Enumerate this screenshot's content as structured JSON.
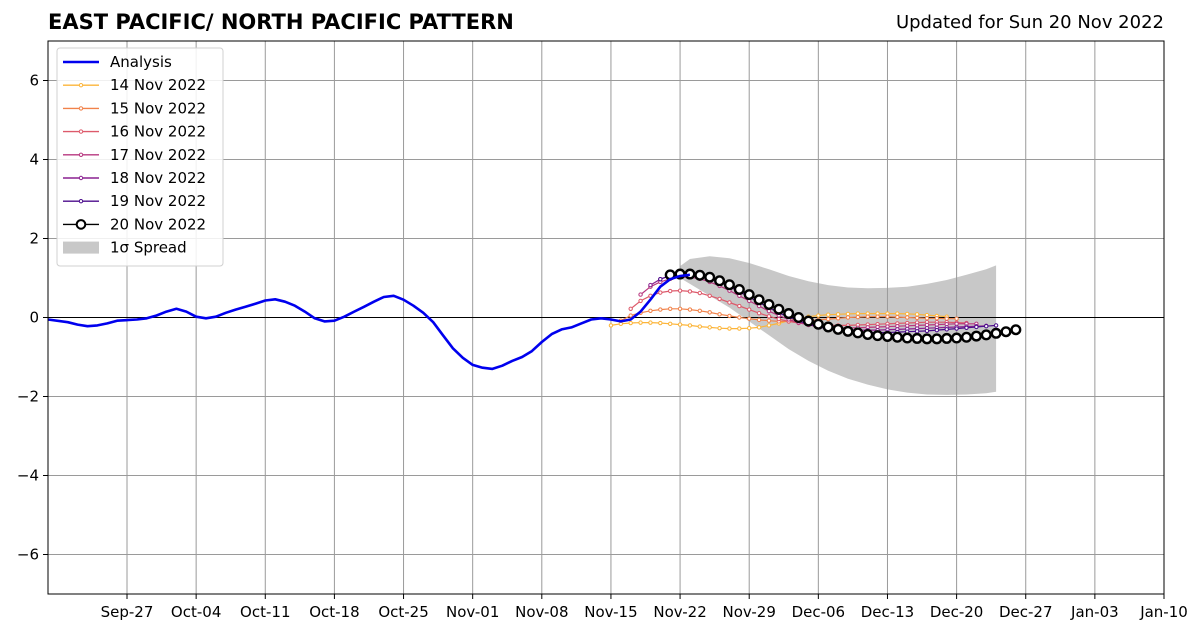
{
  "chart_data": {
    "type": "line",
    "title": "EAST PACIFIC/ NORTH PACIFIC PATTERN",
    "subtitle": "Updated for Sun 20 Nov 2022",
    "xlim": [
      "2022-09-19",
      "2023-01-10"
    ],
    "ylim": [
      -7,
      7
    ],
    "yticks": [
      -6,
      -4,
      -2,
      0,
      2,
      4,
      6
    ],
    "xticks": [
      {
        "date": "2022-09-27",
        "label": "Sep-27"
      },
      {
        "date": "2022-10-04",
        "label": "Oct-04"
      },
      {
        "date": "2022-10-11",
        "label": "Oct-11"
      },
      {
        "date": "2022-10-18",
        "label": "Oct-18"
      },
      {
        "date": "2022-10-25",
        "label": "Oct-25"
      },
      {
        "date": "2022-11-01",
        "label": "Nov-01"
      },
      {
        "date": "2022-11-08",
        "label": "Nov-08"
      },
      {
        "date": "2022-11-15",
        "label": "Nov-15"
      },
      {
        "date": "2022-11-22",
        "label": "Nov-22"
      },
      {
        "date": "2022-11-29",
        "label": "Nov-29"
      },
      {
        "date": "2022-12-06",
        "label": "Dec-06"
      },
      {
        "date": "2022-12-13",
        "label": "Dec-13"
      },
      {
        "date": "2022-12-20",
        "label": "Dec-20"
      },
      {
        "date": "2022-12-27",
        "label": "Dec-27"
      },
      {
        "date": "2023-01-03",
        "label": "Jan-03"
      },
      {
        "date": "2023-01-10",
        "label": "Jan-10"
      }
    ],
    "grid": true,
    "legend": "upper-left",
    "analysis": {
      "name": "Analysis",
      "color": "#0000ee",
      "points": [
        [
          "2022-09-19",
          -0.05
        ],
        [
          "2022-09-21",
          -0.12
        ],
        [
          "2022-09-22",
          -0.18
        ],
        [
          "2022-09-23",
          -0.22
        ],
        [
          "2022-09-24",
          -0.2
        ],
        [
          "2022-09-25",
          -0.15
        ],
        [
          "2022-09-26",
          -0.08
        ],
        [
          "2022-09-28",
          -0.05
        ],
        [
          "2022-09-29",
          -0.02
        ],
        [
          "2022-09-30",
          0.05
        ],
        [
          "2022-10-01",
          0.15
        ],
        [
          "2022-10-02",
          0.22
        ],
        [
          "2022-10-03",
          0.15
        ],
        [
          "2022-10-04",
          0.02
        ],
        [
          "2022-10-05",
          -0.02
        ],
        [
          "2022-10-06",
          0.02
        ],
        [
          "2022-10-07",
          0.12
        ],
        [
          "2022-10-08",
          0.2
        ],
        [
          "2022-10-09",
          0.27
        ],
        [
          "2022-10-10",
          0.35
        ],
        [
          "2022-10-11",
          0.43
        ],
        [
          "2022-10-12",
          0.46
        ],
        [
          "2022-10-13",
          0.4
        ],
        [
          "2022-10-14",
          0.3
        ],
        [
          "2022-10-15",
          0.15
        ],
        [
          "2022-10-16",
          -0.02
        ],
        [
          "2022-10-17",
          -0.1
        ],
        [
          "2022-10-18",
          -0.08
        ],
        [
          "2022-10-19",
          0.02
        ],
        [
          "2022-10-20",
          0.15
        ],
        [
          "2022-10-21",
          0.27
        ],
        [
          "2022-10-22",
          0.4
        ],
        [
          "2022-10-23",
          0.52
        ],
        [
          "2022-10-24",
          0.55
        ],
        [
          "2022-10-25",
          0.45
        ],
        [
          "2022-10-26",
          0.3
        ],
        [
          "2022-10-27",
          0.12
        ],
        [
          "2022-10-28",
          -0.12
        ],
        [
          "2022-10-29",
          -0.45
        ],
        [
          "2022-10-30",
          -0.78
        ],
        [
          "2022-10-31",
          -1.02
        ],
        [
          "2022-11-01",
          -1.2
        ],
        [
          "2022-11-02",
          -1.27
        ],
        [
          "2022-11-03",
          -1.3
        ],
        [
          "2022-11-04",
          -1.22
        ],
        [
          "2022-11-05",
          -1.1
        ],
        [
          "2022-11-06",
          -1.0
        ],
        [
          "2022-11-07",
          -0.85
        ],
        [
          "2022-11-08",
          -0.62
        ],
        [
          "2022-11-09",
          -0.42
        ],
        [
          "2022-11-10",
          -0.3
        ],
        [
          "2022-11-11",
          -0.25
        ],
        [
          "2022-11-12",
          -0.15
        ],
        [
          "2022-11-13",
          -0.05
        ],
        [
          "2022-11-14",
          -0.02
        ],
        [
          "2022-11-15",
          -0.05
        ],
        [
          "2022-11-16",
          -0.1
        ],
        [
          "2022-11-17",
          -0.05
        ],
        [
          "2022-11-18",
          0.15
        ],
        [
          "2022-11-19",
          0.45
        ],
        [
          "2022-11-20",
          0.78
        ],
        [
          "2022-11-21",
          0.97
        ],
        [
          "2022-11-22",
          1.05
        ],
        [
          "2022-11-23",
          1.08
        ]
      ]
    },
    "spread": {
      "name": "1σ Spread",
      "color": "#c8c8c8",
      "points": [
        [
          "2022-11-22",
          1.3,
          1.0
        ],
        [
          "2022-11-23",
          1.48,
          0.85
        ],
        [
          "2022-11-25",
          1.55,
          0.55
        ],
        [
          "2022-11-27",
          1.5,
          0.25
        ],
        [
          "2022-11-29",
          1.38,
          -0.1
        ],
        [
          "2022-12-01",
          1.22,
          -0.45
        ],
        [
          "2022-12-03",
          1.05,
          -0.8
        ],
        [
          "2022-12-05",
          0.92,
          -1.1
        ],
        [
          "2022-12-07",
          0.82,
          -1.35
        ],
        [
          "2022-12-09",
          0.76,
          -1.55
        ],
        [
          "2022-12-11",
          0.74,
          -1.7
        ],
        [
          "2022-12-13",
          0.75,
          -1.82
        ],
        [
          "2022-12-15",
          0.78,
          -1.9
        ],
        [
          "2022-12-17",
          0.85,
          -1.95
        ],
        [
          "2022-12-19",
          0.95,
          -1.96
        ],
        [
          "2022-12-21",
          1.08,
          -1.95
        ],
        [
          "2022-12-23",
          1.22,
          -1.92
        ],
        [
          "2022-12-24",
          1.32,
          -1.88
        ]
      ]
    },
    "series": [
      {
        "name": "14 Nov 2022",
        "color": "#fcb53a",
        "start": "2022-11-15",
        "values": [
          -0.2,
          -0.16,
          -0.14,
          -0.13,
          -0.13,
          -0.14,
          -0.16,
          -0.18,
          -0.2,
          -0.23,
          -0.25,
          -0.27,
          -0.28,
          -0.28,
          -0.27,
          -0.25,
          -0.2,
          -0.15,
          -0.08,
          -0.02,
          0.02,
          0.05,
          0.07,
          0.08,
          0.09,
          0.1,
          0.1,
          0.1,
          0.1,
          0.1,
          0.09,
          0.08,
          0.06,
          0.04,
          0.02
        ]
      },
      {
        "name": "15 Nov 2022",
        "color": "#f1824a",
        "start": "2022-11-16",
        "values": [
          -0.08,
          0.05,
          0.12,
          0.17,
          0.2,
          0.22,
          0.22,
          0.2,
          0.17,
          0.13,
          0.08,
          0.04,
          0.0,
          -0.03,
          -0.06,
          -0.08,
          -0.1,
          -0.1,
          -0.1,
          -0.08,
          -0.06,
          -0.04,
          -0.02,
          0.0,
          0.01,
          0.02,
          0.02,
          0.02,
          0.01,
          0.0,
          -0.01,
          -0.02,
          -0.02,
          -0.03,
          -0.03
        ]
      },
      {
        "name": "16 Nov 2022",
        "color": "#dd5a6b",
        "start": "2022-11-17",
        "values": [
          0.22,
          0.42,
          0.55,
          0.63,
          0.67,
          0.68,
          0.66,
          0.62,
          0.55,
          0.47,
          0.38,
          0.29,
          0.2,
          0.11,
          0.03,
          -0.04,
          -0.1,
          -0.14,
          -0.17,
          -0.19,
          -0.2,
          -0.2,
          -0.2,
          -0.19,
          -0.18,
          -0.17,
          -0.16,
          -0.15,
          -0.14,
          -0.13,
          -0.12,
          -0.12,
          -0.12,
          -0.13,
          -0.14
        ]
      },
      {
        "name": "17 Nov 2022",
        "color": "#b7377f",
        "start": "2022-11-18",
        "values": [
          0.58,
          0.78,
          0.9,
          0.98,
          1.02,
          1.02,
          0.98,
          0.9,
          0.8,
          0.68,
          0.55,
          0.42,
          0.29,
          0.16,
          0.05,
          -0.05,
          -0.13,
          -0.19,
          -0.23,
          -0.25,
          -0.26,
          -0.26,
          -0.26,
          -0.25,
          -0.24,
          -0.23,
          -0.22,
          -0.21,
          -0.2,
          -0.19,
          -0.18,
          -0.17,
          -0.16,
          -0.16,
          -0.16
        ]
      },
      {
        "name": "18 Nov 2022",
        "color": "#8a2190",
        "start": "2022-11-19",
        "values": [
          0.82,
          0.97,
          1.06,
          1.1,
          1.1,
          1.07,
          1.0,
          0.9,
          0.78,
          0.65,
          0.52,
          0.38,
          0.25,
          0.12,
          0.01,
          -0.08,
          -0.16,
          -0.22,
          -0.26,
          -0.29,
          -0.31,
          -0.32,
          -0.32,
          -0.32,
          -0.31,
          -0.3,
          -0.29,
          -0.28,
          -0.27,
          -0.26,
          -0.25,
          -0.24,
          -0.23,
          -0.22,
          -0.21
        ]
      },
      {
        "name": "19 Nov 2022",
        "color": "#4b0c8c",
        "start": "2022-11-20",
        "values": [
          0.97,
          1.06,
          1.1,
          1.1,
          1.07,
          1.0,
          0.9,
          0.79,
          0.66,
          0.52,
          0.38,
          0.25,
          0.12,
          0.01,
          -0.09,
          -0.17,
          -0.24,
          -0.29,
          -0.33,
          -0.36,
          -0.37,
          -0.38,
          -0.38,
          -0.38,
          -0.37,
          -0.36,
          -0.35,
          -0.34,
          -0.32,
          -0.3,
          -0.28,
          -0.26,
          -0.24,
          -0.22,
          -0.2
        ]
      },
      {
        "name": "20 Nov 2022",
        "color": "#000000",
        "marker": "open-circle",
        "start": "2022-11-21",
        "values": [
          1.08,
          1.1,
          1.1,
          1.07,
          1.02,
          0.93,
          0.83,
          0.71,
          0.58,
          0.45,
          0.33,
          0.21,
          0.1,
          0.0,
          -0.09,
          -0.17,
          -0.24,
          -0.3,
          -0.35,
          -0.39,
          -0.43,
          -0.46,
          -0.48,
          -0.5,
          -0.52,
          -0.53,
          -0.54,
          -0.54,
          -0.53,
          -0.52,
          -0.5,
          -0.47,
          -0.44,
          -0.4,
          -0.36,
          -0.31
        ]
      }
    ]
  }
}
